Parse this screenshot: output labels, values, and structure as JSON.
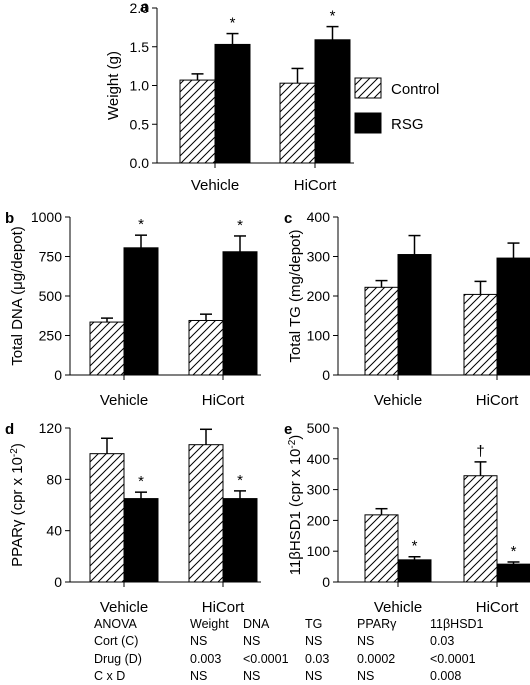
{
  "legend": {
    "items": [
      {
        "label": "Control",
        "pattern": "hatch"
      },
      {
        "label": "RSG",
        "pattern": "solid"
      }
    ]
  },
  "chart_data": [
    {
      "panel": "a",
      "type": "bar",
      "ylabel": "Weight (g)",
      "ylim": [
        0,
        2.0
      ],
      "yticks": [
        "0.0",
        "0.5",
        "1.0",
        "1.5",
        "2.0"
      ],
      "categories": [
        "Vehicle",
        "HiCort"
      ],
      "series": [
        {
          "name": "Control",
          "values": [
            1.07,
            1.03
          ],
          "errors": [
            0.08,
            0.19
          ]
        },
        {
          "name": "RSG",
          "values": [
            1.53,
            1.59
          ],
          "errors": [
            0.14,
            0.17
          ]
        }
      ],
      "annotations": [
        {
          "category": 0,
          "series": 1,
          "text": "*"
        },
        {
          "category": 1,
          "series": 1,
          "text": "*"
        }
      ]
    },
    {
      "panel": "b",
      "type": "bar",
      "ylabel": "Total DNA (μg/depot)",
      "ylim": [
        0,
        1000
      ],
      "yticks": [
        "0",
        "250",
        "500",
        "750",
        "1000"
      ],
      "categories": [
        "Vehicle",
        "HiCort"
      ],
      "series": [
        {
          "name": "Control",
          "values": [
            335,
            345
          ],
          "errors": [
            25,
            40
          ]
        },
        {
          "name": "RSG",
          "values": [
            805,
            780
          ],
          "errors": [
            80,
            100
          ]
        }
      ],
      "annotations": [
        {
          "category": 0,
          "series": 1,
          "text": "*"
        },
        {
          "category": 1,
          "series": 1,
          "text": "*"
        }
      ]
    },
    {
      "panel": "c",
      "type": "bar",
      "ylabel": "Total TG (mg/depot)",
      "ylim": [
        0,
        400
      ],
      "yticks": [
        "0",
        "100",
        "200",
        "300",
        "400"
      ],
      "categories": [
        "Vehicle",
        "HiCort"
      ],
      "series": [
        {
          "name": "Control",
          "values": [
            222,
            204
          ],
          "errors": [
            17,
            33
          ]
        },
        {
          "name": "RSG",
          "values": [
            305,
            296
          ],
          "errors": [
            48,
            38
          ]
        }
      ],
      "annotations": []
    },
    {
      "panel": "d",
      "type": "bar",
      "ylabel_main": "PPARγ (cpr x 10",
      "ylabel_sup": "-2",
      "ylabel_end": ")",
      "ylim": [
        0,
        120
      ],
      "yticks": [
        "0",
        "40",
        "80",
        "120"
      ],
      "categories": [
        "Vehicle",
        "HiCort"
      ],
      "series": [
        {
          "name": "Control",
          "values": [
            100,
            107
          ],
          "errors": [
            12,
            12
          ]
        },
        {
          "name": "RSG",
          "values": [
            65,
            65
          ],
          "errors": [
            5,
            6
          ]
        }
      ],
      "annotations": [
        {
          "category": 0,
          "series": 1,
          "text": "*"
        },
        {
          "category": 1,
          "series": 1,
          "text": "*"
        }
      ]
    },
    {
      "panel": "e",
      "type": "bar",
      "ylabel_main": "11βHSD1 (cpr x 10",
      "ylabel_sup": "-2",
      "ylabel_end": ")",
      "ylim": [
        0,
        500
      ],
      "yticks": [
        "0",
        "100",
        "200",
        "300",
        "400",
        "500"
      ],
      "categories": [
        "Vehicle",
        "HiCort"
      ],
      "series": [
        {
          "name": "Control",
          "values": [
            218,
            345
          ],
          "errors": [
            20,
            45
          ]
        },
        {
          "name": "RSG",
          "values": [
            72,
            58
          ],
          "errors": [
            10,
            7
          ]
        }
      ],
      "annotations": [
        {
          "category": 1,
          "series": 0,
          "text": "†"
        },
        {
          "category": 0,
          "series": 1,
          "text": "*"
        },
        {
          "category": 1,
          "series": 1,
          "text": "*"
        }
      ]
    }
  ],
  "anova_table": {
    "headers": [
      "ANOVA",
      "Weight",
      "DNA",
      "TG",
      "PPARγ",
      "11βHSD1"
    ],
    "rows": [
      [
        "Cort (C)",
        "NS",
        "NS",
        "NS",
        "NS",
        "0.03"
      ],
      [
        "Drug (D)",
        "0.003",
        "<0.0001",
        "0.03",
        "0.0002",
        "<0.0001"
      ],
      [
        "C x D",
        "NS",
        "NS",
        "NS",
        "NS",
        "0.008"
      ]
    ]
  }
}
